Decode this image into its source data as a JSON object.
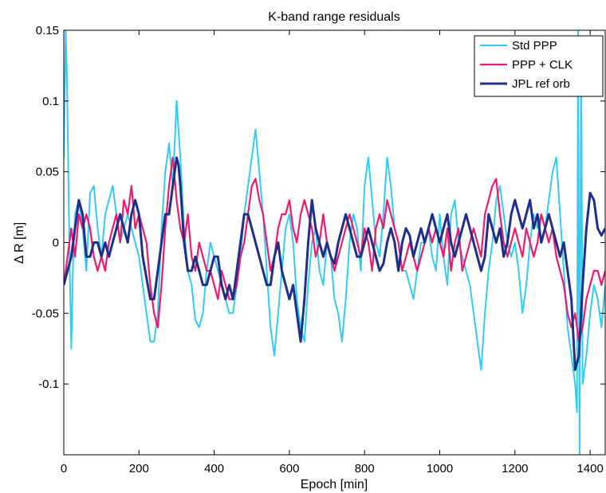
{
  "chart_data": {
    "type": "line",
    "title": "K-band range residuals",
    "xlabel": "Epoch [min]",
    "ylabel": "Δ R [m]",
    "xlim": [
      0,
      1440
    ],
    "ylim": [
      -0.15,
      0.15
    ],
    "xticks": [
      0,
      200,
      400,
      600,
      800,
      1000,
      1200,
      1400
    ],
    "xtick_labels": [
      "0",
      "200",
      "400",
      "600",
      "800",
      "1000",
      "1200",
      "1400"
    ],
    "yticks": [
      -0.1,
      -0.05,
      0,
      0.05,
      0.1,
      0.15
    ],
    "ytick_labels": [
      "-0.1",
      "-0.05",
      "0",
      "0.05",
      "0.1",
      "0.15"
    ],
    "grid": false,
    "legend_position": "top-right",
    "series": [
      {
        "name": "Std PPP",
        "color": "#33ccf0",
        "x": [
          0,
          5,
          8,
          12,
          16,
          20,
          25,
          30,
          40,
          50,
          60,
          70,
          80,
          90,
          100,
          110,
          120,
          130,
          140,
          150,
          160,
          170,
          180,
          190,
          200,
          210,
          220,
          230,
          240,
          250,
          260,
          270,
          280,
          290,
          300,
          310,
          320,
          330,
          340,
          350,
          360,
          370,
          380,
          390,
          400,
          410,
          420,
          430,
          440,
          450,
          460,
          470,
          480,
          490,
          500,
          510,
          520,
          530,
          540,
          550,
          560,
          570,
          580,
          590,
          600,
          610,
          620,
          630,
          640,
          650,
          660,
          670,
          680,
          690,
          700,
          710,
          720,
          730,
          740,
          750,
          760,
          770,
          780,
          790,
          800,
          810,
          820,
          830,
          840,
          850,
          860,
          870,
          880,
          890,
          900,
          910,
          920,
          930,
          940,
          950,
          960,
          970,
          980,
          990,
          1000,
          1010,
          1020,
          1030,
          1040,
          1050,
          1060,
          1070,
          1080,
          1090,
          1100,
          1110,
          1120,
          1130,
          1140,
          1150,
          1160,
          1170,
          1180,
          1190,
          1200,
          1210,
          1220,
          1230,
          1240,
          1250,
          1260,
          1270,
          1280,
          1290,
          1300,
          1310,
          1320,
          1330,
          1340,
          1350,
          1360,
          1365,
          1368,
          1372,
          1376,
          1380,
          1390,
          1400,
          1410,
          1420,
          1430,
          1440
        ],
        "values": [
          0.06,
          0.15,
          0.12,
          0.05,
          -0.02,
          -0.075,
          -0.01,
          0.02,
          0.03,
          0.01,
          -0.02,
          0.035,
          0.04,
          0.01,
          -0.01,
          0.02,
          0.03,
          0.04,
          0.02,
          0.0,
          0.01,
          0.02,
          0.01,
          0.0,
          -0.01,
          -0.03,
          -0.05,
          -0.07,
          -0.07,
          -0.05,
          0.01,
          0.05,
          0.07,
          0.04,
          0.1,
          0.06,
          0.01,
          -0.02,
          -0.03,
          -0.055,
          -0.06,
          -0.05,
          -0.02,
          0.0,
          -0.01,
          -0.02,
          -0.03,
          -0.04,
          -0.05,
          -0.05,
          -0.03,
          -0.01,
          0.02,
          0.04,
          0.06,
          0.08,
          0.05,
          0.02,
          -0.02,
          -0.06,
          -0.08,
          -0.05,
          -0.02,
          0.01,
          0.02,
          0.0,
          -0.04,
          -0.06,
          -0.07,
          -0.03,
          0.0,
          0.01,
          -0.02,
          -0.03,
          0.0,
          -0.01,
          -0.04,
          -0.05,
          -0.07,
          -0.04,
          0.0,
          0.02,
          0.01,
          -0.02,
          0.04,
          0.06,
          0.03,
          0.0,
          -0.01,
          0.02,
          0.06,
          0.04,
          0.01,
          0.0,
          -0.02,
          -0.02,
          -0.03,
          -0.04,
          -0.02,
          0.0,
          0.0,
          0.01,
          -0.01,
          -0.02,
          0.02,
          -0.01,
          -0.03,
          0.02,
          0.03,
          0.0,
          -0.01,
          -0.02,
          -0.03,
          -0.05,
          -0.07,
          -0.09,
          -0.05,
          -0.02,
          0.0,
          0.03,
          0.04,
          0.02,
          0.0,
          -0.01,
          0.0,
          -0.02,
          -0.05,
          -0.03,
          0.0,
          0.02,
          0.01,
          0.02,
          0.01,
          0.03,
          0.05,
          0.06,
          0.02,
          -0.02,
          -0.06,
          -0.08,
          -0.1,
          -0.12,
          0.15,
          -0.15,
          0.14,
          -0.1,
          -0.08,
          -0.05,
          -0.03,
          -0.04,
          -0.06,
          -0.03
        ]
      },
      {
        "name": "PPP + CLK",
        "color": "#ef1a6e",
        "x": [
          0,
          10,
          20,
          30,
          40,
          50,
          60,
          70,
          80,
          90,
          100,
          110,
          120,
          130,
          140,
          150,
          160,
          170,
          180,
          190,
          200,
          210,
          220,
          230,
          240,
          250,
          260,
          270,
          280,
          290,
          300,
          310,
          320,
          330,
          340,
          350,
          360,
          370,
          380,
          390,
          400,
          410,
          420,
          430,
          440,
          450,
          460,
          470,
          480,
          490,
          500,
          510,
          520,
          530,
          540,
          550,
          560,
          570,
          580,
          590,
          600,
          610,
          620,
          630,
          640,
          650,
          660,
          670,
          680,
          690,
          700,
          710,
          720,
          730,
          740,
          750,
          760,
          770,
          780,
          790,
          800,
          810,
          820,
          830,
          840,
          850,
          860,
          870,
          880,
          890,
          900,
          910,
          920,
          930,
          940,
          950,
          960,
          970,
          980,
          990,
          1000,
          1010,
          1020,
          1030,
          1040,
          1050,
          1060,
          1070,
          1080,
          1090,
          1100,
          1110,
          1120,
          1130,
          1140,
          1150,
          1160,
          1170,
          1180,
          1190,
          1200,
          1210,
          1220,
          1230,
          1240,
          1250,
          1260,
          1270,
          1280,
          1290,
          1300,
          1310,
          1320,
          1330,
          1340,
          1350,
          1360,
          1370,
          1380,
          1390,
          1400,
          1410,
          1420,
          1430,
          1440
        ],
        "values": [
          -0.03,
          -0.01,
          0.01,
          -0.01,
          0.02,
          0.01,
          0.02,
          0.01,
          -0.01,
          -0.02,
          -0.01,
          -0.02,
          0.0,
          0.01,
          0.02,
          0.0,
          0.03,
          0.02,
          0.04,
          0.01,
          0.02,
          0.01,
          0.0,
          -0.03,
          -0.05,
          -0.06,
          -0.03,
          0.01,
          0.04,
          0.06,
          0.03,
          0.01,
          0.0,
          0.02,
          -0.01,
          -0.02,
          0.0,
          -0.01,
          -0.02,
          -0.02,
          -0.03,
          -0.04,
          -0.02,
          -0.03,
          -0.04,
          -0.04,
          -0.03,
          -0.01,
          0.0,
          0.02,
          0.04,
          0.045,
          0.03,
          0.02,
          0.0,
          -0.02,
          -0.01,
          0.01,
          0.02,
          0.02,
          0.03,
          0.01,
          0.0,
          0.02,
          0.03,
          0.02,
          0.01,
          -0.01,
          0.0,
          0.02,
          0.0,
          -0.01,
          -0.02,
          -0.01,
          0.0,
          0.01,
          0.02,
          0.01,
          0.0,
          -0.01,
          0.01,
          0.0,
          -0.02,
          0.01,
          0.02,
          0.01,
          0.03,
          0.02,
          0.01,
          0.0,
          -0.02,
          -0.01,
          0.0,
          -0.01,
          -0.02,
          -0.01,
          0.0,
          0.01,
          0.0,
          0.01,
          0.0,
          -0.01,
          0.01,
          -0.02,
          0.0,
          0.01,
          -0.02,
          -0.01,
          0.0,
          0.01,
          0.0,
          -0.01,
          0.02,
          0.03,
          0.04,
          0.045,
          0.02,
          0.0,
          -0.01,
          0.0,
          0.01,
          0.0,
          -0.01,
          0.01,
          0.0,
          -0.01,
          0.0,
          0.02,
          0.01,
          0.0,
          0.01,
          -0.01,
          -0.02,
          -0.03,
          -0.05,
          -0.06,
          -0.05,
          -0.07,
          -0.06,
          -0.04,
          -0.03,
          -0.02,
          -0.02,
          -0.03,
          -0.02
        ]
      },
      {
        "name": "JPL ref orb",
        "color": "#1f2f88",
        "x": [
          0,
          10,
          20,
          30,
          40,
          50,
          60,
          70,
          80,
          90,
          100,
          110,
          120,
          130,
          140,
          150,
          160,
          170,
          180,
          190,
          200,
          210,
          220,
          230,
          240,
          250,
          260,
          270,
          280,
          290,
          300,
          305,
          310,
          320,
          330,
          340,
          350,
          360,
          370,
          380,
          390,
          400,
          410,
          420,
          430,
          440,
          450,
          460,
          470,
          480,
          490,
          500,
          510,
          520,
          530,
          540,
          550,
          560,
          570,
          580,
          590,
          600,
          610,
          620,
          630,
          640,
          650,
          660,
          670,
          680,
          690,
          700,
          710,
          720,
          730,
          740,
          750,
          760,
          770,
          780,
          790,
          800,
          810,
          820,
          830,
          840,
          850,
          860,
          870,
          880,
          890,
          900,
          910,
          920,
          930,
          940,
          950,
          960,
          970,
          980,
          990,
          1000,
          1010,
          1020,
          1030,
          1040,
          1050,
          1060,
          1070,
          1080,
          1090,
          1100,
          1110,
          1120,
          1130,
          1140,
          1150,
          1160,
          1170,
          1180,
          1190,
          1200,
          1210,
          1220,
          1230,
          1240,
          1250,
          1260,
          1270,
          1280,
          1290,
          1300,
          1310,
          1320,
          1330,
          1340,
          1350,
          1360,
          1370,
          1380,
          1390,
          1400,
          1410,
          1420,
          1430,
          1440
        ],
        "values": [
          -0.03,
          -0.02,
          -0.01,
          0.01,
          0.03,
          0.02,
          -0.01,
          -0.01,
          0.0,
          0.0,
          -0.01,
          0.0,
          -0.01,
          0.0,
          0.01,
          0.02,
          0.01,
          0.0,
          0.02,
          0.03,
          0.02,
          -0.01,
          -0.025,
          -0.04,
          -0.04,
          -0.02,
          0.0,
          0.02,
          0.02,
          0.04,
          0.06,
          0.055,
          0.04,
          0.0,
          -0.02,
          -0.02,
          -0.01,
          -0.02,
          -0.03,
          -0.03,
          -0.02,
          -0.01,
          -0.01,
          -0.03,
          -0.04,
          -0.03,
          -0.04,
          -0.02,
          0.0,
          0.02,
          0.02,
          0.01,
          0.0,
          -0.01,
          -0.02,
          -0.03,
          -0.03,
          -0.01,
          0.0,
          -0.02,
          -0.03,
          -0.04,
          -0.03,
          -0.05,
          -0.07,
          -0.04,
          0.0,
          0.03,
          0.01,
          0.0,
          -0.01,
          0.0,
          -0.01,
          -0.015,
          0.0,
          0.01,
          0.02,
          0.01,
          0.0,
          -0.01,
          -0.01,
          0.0,
          0.01,
          0.0,
          -0.01,
          -0.02,
          -0.015,
          0.0,
          0.01,
          0.0,
          -0.02,
          0.0,
          0.01,
          0.005,
          -0.01,
          0.0,
          0.01,
          0.0,
          0.01,
          0.02,
          0.01,
          0.0,
          0.01,
          0.02,
          0.0,
          -0.01,
          0.0,
          0.01,
          0.02,
          0.01,
          0.0,
          -0.01,
          -0.02,
          -0.01,
          0.02,
          0.01,
          0.0,
          0.01,
          -0.01,
          0.0,
          0.02,
          0.03,
          0.02,
          0.01,
          0.02,
          0.03,
          0.01,
          0.02,
          0.0,
          0.01,
          0.02,
          0.01,
          0.0,
          -0.01,
          0.0,
          -0.02,
          -0.04,
          -0.09,
          -0.08,
          -0.03,
          0.01,
          0.035,
          0.03,
          0.01,
          0.005,
          0.01
        ]
      }
    ]
  }
}
